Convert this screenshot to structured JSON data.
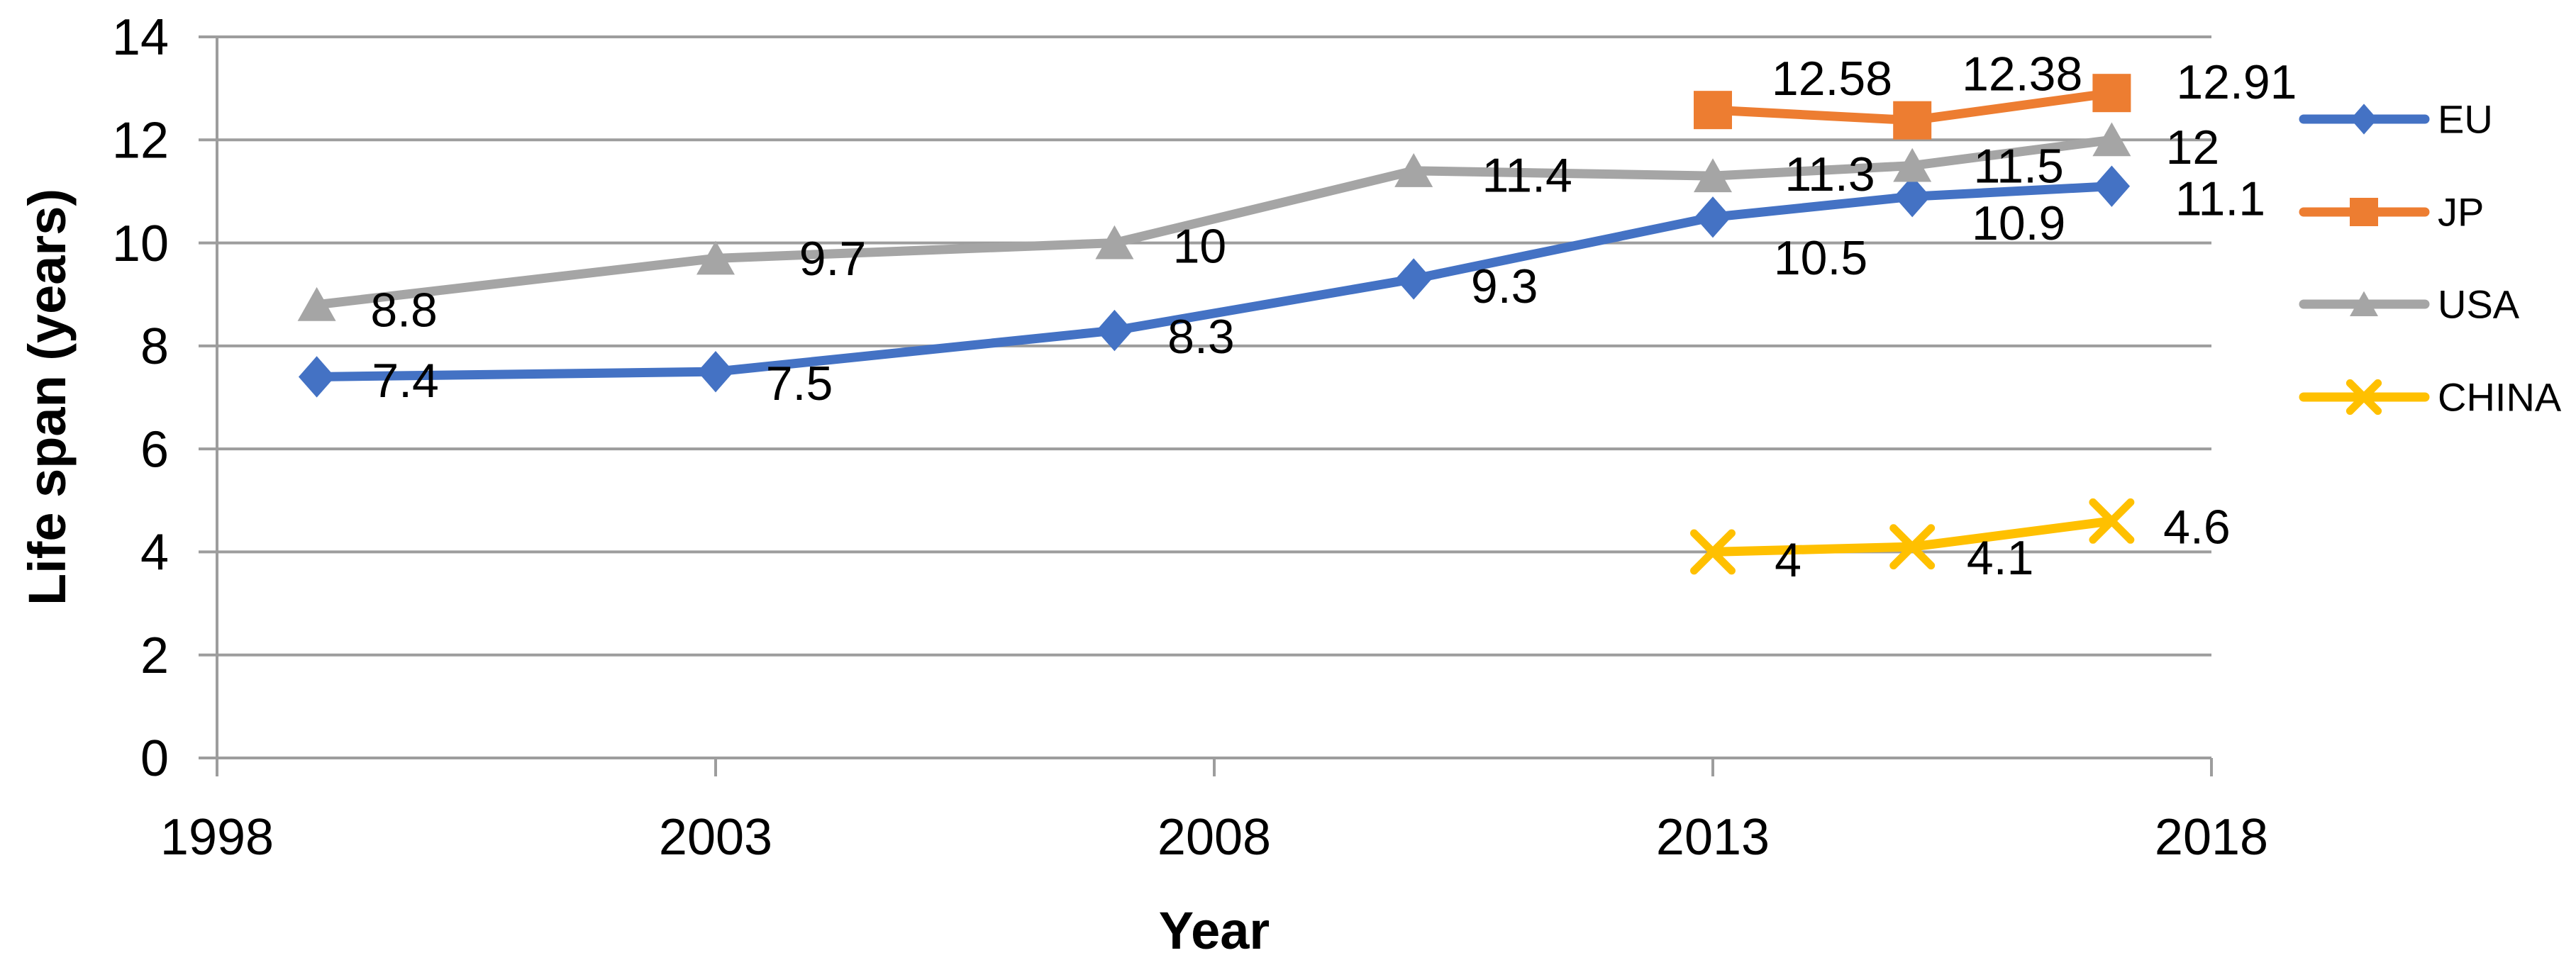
{
  "chart_data": {
    "type": "line",
    "title": "",
    "xlabel": "Year",
    "ylabel": "Life span (years)",
    "xlim": [
      1998,
      2018
    ],
    "ylim": [
      0,
      14
    ],
    "x_ticks": [
      {
        "value": 1998,
        "label": "1998"
      },
      {
        "value": 2003,
        "label": "2003"
      },
      {
        "value": 2008,
        "label": "2008"
      },
      {
        "value": 2013,
        "label": "2013"
      },
      {
        "value": 2018,
        "label": "2018"
      }
    ],
    "y_ticks": [
      {
        "value": 0,
        "label": "0"
      },
      {
        "value": 2,
        "label": "2"
      },
      {
        "value": 4,
        "label": "4"
      },
      {
        "value": 6,
        "label": "6"
      },
      {
        "value": 8,
        "label": "8"
      },
      {
        "value": 10,
        "label": "10"
      },
      {
        "value": 12,
        "label": "12"
      },
      {
        "value": 14,
        "label": "14"
      }
    ],
    "grid": true,
    "legend_position": "right",
    "axis_color": "#9D9D9D",
    "text_color": "#000000",
    "series": [
      {
        "name": "EU",
        "color": "#4472C4",
        "marker": "diamond",
        "points": [
          {
            "x": 1999,
            "y": 7.4,
            "label": "7.4"
          },
          {
            "x": 2003,
            "y": 7.5,
            "label": "7.5"
          },
          {
            "x": 2007,
            "y": 8.3,
            "label": "8.3"
          },
          {
            "x": 2010,
            "y": 9.3,
            "label": "9.3"
          },
          {
            "x": 2013,
            "y": 10.5,
            "label": "10.5"
          },
          {
            "x": 2015,
            "y": 10.9,
            "label": "10.9"
          },
          {
            "x": 2017,
            "y": 11.1,
            "label": "11.1"
          }
        ]
      },
      {
        "name": "JP",
        "color": "#ED7D31",
        "marker": "square",
        "points": [
          {
            "x": 2013,
            "y": 12.58,
            "label": "12.58"
          },
          {
            "x": 2015,
            "y": 12.38,
            "label": "12.38"
          },
          {
            "x": 2017,
            "y": 12.91,
            "label": "12.91"
          }
        ]
      },
      {
        "name": "USA",
        "color": "#A5A5A5",
        "marker": "triangle",
        "points": [
          {
            "x": 1999,
            "y": 8.8,
            "label": "8.8"
          },
          {
            "x": 2003,
            "y": 9.7,
            "label": "9.7"
          },
          {
            "x": 2007,
            "y": 10,
            "label": "10"
          },
          {
            "x": 2010,
            "y": 11.4,
            "label": "11.4"
          },
          {
            "x": 2013,
            "y": 11.3,
            "label": "11.3"
          },
          {
            "x": 2015,
            "y": 11.5,
            "label": "11.5"
          },
          {
            "x": 2017,
            "y": 12,
            "label": "12"
          }
        ]
      },
      {
        "name": "CHINA",
        "color": "#FFC000",
        "marker": "x",
        "points": [
          {
            "x": 2013,
            "y": 4,
            "label": "4"
          },
          {
            "x": 2015,
            "y": 4.1,
            "label": "4.1"
          },
          {
            "x": 2017,
            "y": 4.6,
            "label": "4.6"
          }
        ]
      }
    ],
    "legend_items": [
      "EU",
      "JP",
      "USA",
      "CHINA"
    ]
  }
}
